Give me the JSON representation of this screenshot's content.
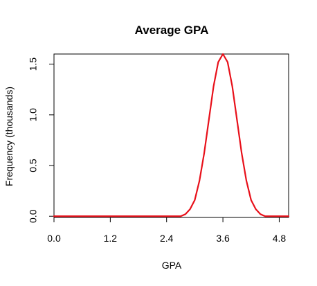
{
  "chart_data": {
    "type": "line",
    "title": "Average GPA",
    "xlabel": "GPA",
    "ylabel": "Frequency (thousands)",
    "xlim": [
      0,
      5.0
    ],
    "ylim": [
      0,
      1.6
    ],
    "x_ticks": [
      "0.0",
      "1.2",
      "2.4",
      "3.6",
      "4.8"
    ],
    "y_ticks": [
      "0.0",
      "0.5",
      "1.0",
      "1.5"
    ],
    "grid": false,
    "series": [
      {
        "color": "#e8101a",
        "x": [
          0.0,
          2.4,
          2.7,
          2.8,
          2.9,
          3.0,
          3.1,
          3.2,
          3.3,
          3.4,
          3.5,
          3.6,
          3.7,
          3.8,
          3.9,
          4.0,
          4.1,
          4.2,
          4.3,
          4.4,
          4.5,
          4.8,
          5.0
        ],
        "y": [
          0.0,
          0.0,
          0.0,
          0.02,
          0.07,
          0.16,
          0.35,
          0.62,
          0.95,
          1.28,
          1.52,
          1.6,
          1.52,
          1.28,
          0.95,
          0.62,
          0.35,
          0.16,
          0.07,
          0.02,
          0.0,
          0.0,
          0.0
        ]
      }
    ]
  }
}
